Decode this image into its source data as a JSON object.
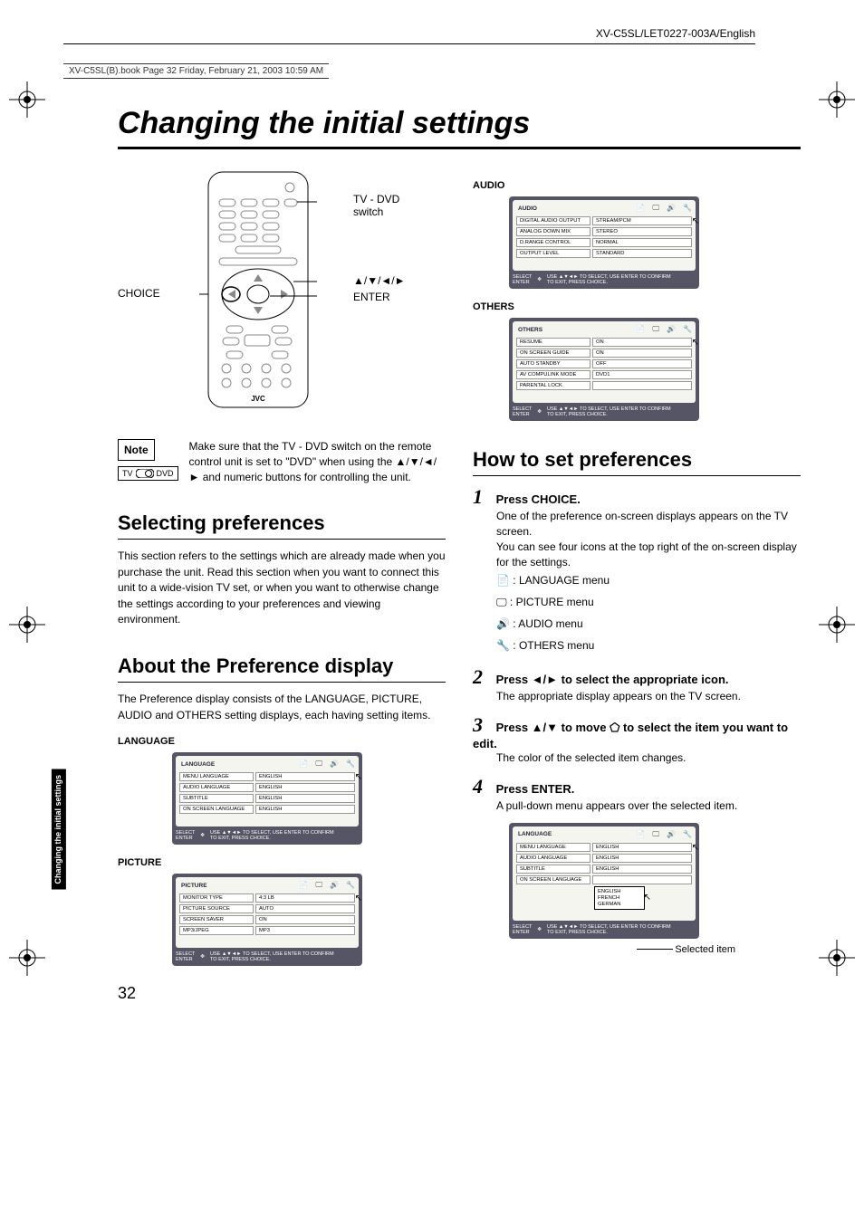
{
  "meta": {
    "book_line": "XV-C5SL(B).book  Page 32  Friday, February 21, 2003  10:59 AM",
    "header_id": "XV-C5SL/LET0227-003A/English"
  },
  "title": "Changing the initial settings",
  "remote": {
    "labels": {
      "choice": "CHOICE",
      "tvdvd": "TV - DVD switch",
      "arrows": "▲/▼/◄/►",
      "enter": "ENTER"
    },
    "brand": "JVC"
  },
  "note": {
    "heading": "Note",
    "switch_left": "TV",
    "switch_right": "DVD",
    "text": "Make sure that the TV - DVD switch on the remote control unit is set to \"DVD\" when using the ▲/▼/◄/► and numeric buttons for controlling the unit."
  },
  "selecting": {
    "heading": "Selecting preferences",
    "body": "This section refers to the settings which are already made when you purchase the unit. Read this section when you want to connect this unit to a wide-vision TV set, or when you want to otherwise change the settings according to your preferences and viewing environment."
  },
  "about": {
    "heading": "About the Preference display",
    "body": "The Preference display consists of the LANGUAGE, PICTURE, AUDIO and OTHERS setting displays, each having setting items."
  },
  "osd_common": {
    "footer_left": "SELECT\nENTER",
    "footer_right": "USE ▲▼◄► TO SELECT, USE ENTER TO CONFIRM\nTO EXIT, PRESS CHOICE."
  },
  "osd": {
    "language": {
      "label": "LANGUAGE",
      "title": "LANGUAGE",
      "rows": [
        [
          "MENU LANGUAGE",
          "ENGLISH"
        ],
        [
          "AUDIO LANGUAGE",
          "ENGLISH"
        ],
        [
          "SUBTITLE",
          "ENGLISH"
        ],
        [
          "ON SCREEN LANGUAGE",
          "ENGLISH"
        ]
      ]
    },
    "picture": {
      "label": "PICTURE",
      "title": "PICTURE",
      "rows": [
        [
          "MONITOR TYPE",
          "4:3 LB"
        ],
        [
          "PICTURE SOURCE",
          "AUTO"
        ],
        [
          "SCREEN SAVER",
          "ON"
        ],
        [
          "MP3/JPEG",
          "MP3"
        ]
      ]
    },
    "audio": {
      "label": "AUDIO",
      "title": "AUDIO",
      "rows": [
        [
          "DIGITAL AUDIO OUTPUT",
          "STREAM/PCM"
        ],
        [
          "ANALOG DOWN MIX",
          "STEREO"
        ],
        [
          "D.RANGE CONTROL",
          "NORMAL"
        ],
        [
          "OUTPUT LEVEL",
          "STANDARD"
        ]
      ]
    },
    "others": {
      "label": "OTHERS",
      "title": "OTHERS",
      "rows": [
        [
          "RESUME",
          "ON"
        ],
        [
          "ON SCREEN GUIDE",
          "ON"
        ],
        [
          "AUTO STANDBY",
          "OFF"
        ],
        [
          "AV COMPULINK MODE",
          "DVD1"
        ],
        [
          "PARENTAL LOCK",
          ""
        ]
      ]
    },
    "dropdown": {
      "title": "LANGUAGE",
      "rows": [
        [
          "MENU LANGUAGE",
          "ENGLISH"
        ],
        [
          "AUDIO LANGUAGE",
          "ENGLISH"
        ],
        [
          "SUBTITLE",
          "ENGLISH"
        ],
        [
          "ON SCREEN LANGUAGE",
          ""
        ]
      ],
      "options": [
        "ENGLISH",
        "FRENCH",
        "GERMAN"
      ]
    }
  },
  "howto": {
    "heading": "How to set preferences",
    "steps": {
      "s1": {
        "num": "1",
        "head": "Press CHOICE.",
        "body1": "One of the preference on-screen displays appears on the TV screen.",
        "body2": "You can see four icons at the top right of the on-screen display for the settings.",
        "menus": [
          ": LANGUAGE menu",
          ": PICTURE menu",
          ": AUDIO menu",
          ": OTHERS menu"
        ]
      },
      "s2": {
        "num": "2",
        "head": "Press ◄/► to select the appropriate icon.",
        "body": "The appropriate display appears on the TV screen."
      },
      "s3": {
        "num": "3",
        "head": "Press ▲/▼ to move  ⬠  to select the item you want to edit.",
        "body": "The color of the selected item changes."
      },
      "s4": {
        "num": "4",
        "head": "Press ENTER.",
        "body": "A pull-down menu appears over the selected item."
      }
    },
    "selected_label": "Selected item"
  },
  "sidetab": "Changing the initial settings",
  "page_number": "32"
}
